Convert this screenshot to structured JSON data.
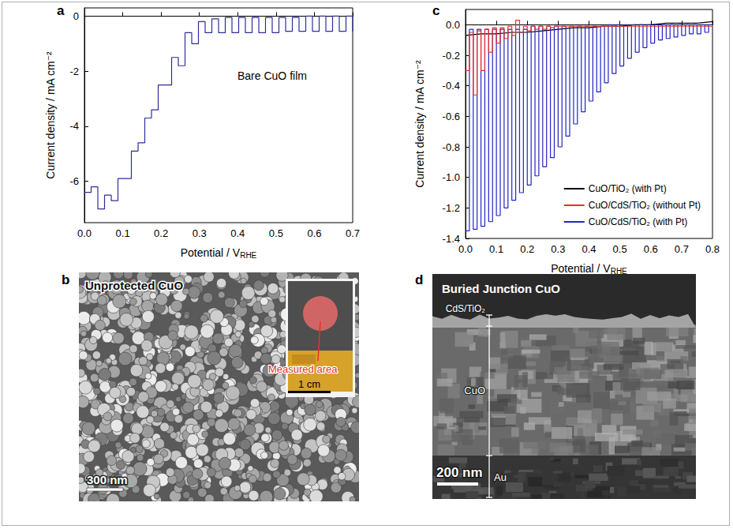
{
  "chart_data": [
    {
      "panel": "a",
      "type": "line",
      "annotations": [
        "Bare CuO film"
      ],
      "x_label": "Potential / VRHE",
      "y_label": "Current density / mA cm⁻²",
      "xlim": [
        0,
        0.7
      ],
      "xticks": [
        {
          "value": 0,
          "label": "0.0"
        },
        0.1,
        0.2,
        0.3,
        0.4,
        0.5,
        0.6,
        0.7
      ],
      "ylim": [
        -7.5,
        0.3
      ],
      "yticks": [
        -6,
        -4,
        -2,
        0
      ],
      "grid": false,
      "color": "#2e2e9a",
      "line_style": "step",
      "x": [
        0,
        0.0175,
        0.035,
        0.0525,
        0.07,
        0.0875,
        0.105,
        0.1225,
        0.14,
        0.1575,
        0.175,
        0.1925,
        0.21,
        0.2275,
        0.245,
        0.2625,
        0.28,
        0.2975,
        0.315,
        0.3325,
        0.35,
        0.3675,
        0.385,
        0.4025,
        0.42,
        0.4375,
        0.455,
        0.4725,
        0.49,
        0.5075,
        0.525,
        0.5425,
        0.56,
        0.5775,
        0.595,
        0.6125,
        0.63,
        0.6475,
        0.665,
        0.6825,
        0.7
      ],
      "values": [
        -6.4,
        -6.2,
        -7.0,
        -6.5,
        -6.7,
        -5.9,
        -5.9,
        -4.9,
        -4.6,
        -3.7,
        -3.4,
        -2.5,
        -2.5,
        -1.5,
        -1.8,
        -0.6,
        -1.0,
        -0.2,
        -0.6,
        -0.1,
        -0.6,
        -0.05,
        -0.6,
        -0.05,
        -0.6,
        -0.05,
        -0.6,
        -0.05,
        -0.6,
        -0.05,
        -0.55,
        -0.05,
        -0.55,
        0,
        -0.55,
        0,
        -0.55,
        0,
        -0.55,
        0,
        -0.55
      ]
    },
    {
      "panel": "c",
      "type": "line",
      "x_label": "Potential / VRHE",
      "y_label": "Current density / mA cm⁻²",
      "xlim": [
        0,
        0.8
      ],
      "xticks": [
        {
          "value": 0,
          "label": "0.0"
        },
        0.1,
        0.2,
        0.3,
        0.4,
        0.5,
        0.6,
        0.7,
        0.8
      ],
      "ylim": [
        -1.4,
        0.1
      ],
      "yticks": [
        -1.4,
        -1.2,
        {
          "value": -1,
          "label": "-1.0"
        },
        -0.8,
        -0.6,
        -0.4,
        -0.2,
        {
          "value": 0,
          "label": "0.0"
        }
      ],
      "grid": false,
      "legend": "lower right",
      "series": [
        {
          "name": "CuO/TiO₂ (with Pt)",
          "color": "#000000",
          "line_style": "solid",
          "x": [
            0,
            0.05,
            0.1,
            0.15,
            0.2,
            0.25,
            0.3,
            0.35,
            0.4,
            0.45,
            0.5,
            0.55,
            0.6,
            0.65,
            0.7,
            0.75,
            0.8
          ],
          "values": [
            -0.07,
            -0.06,
            -0.06,
            -0.05,
            -0.05,
            -0.04,
            -0.03,
            -0.02,
            -0.02,
            -0.01,
            -0.01,
            0,
            0,
            0.01,
            0.01,
            0.01,
            0.02
          ]
        },
        {
          "name": "CuO/CdS/TiO₂ (without Pt)",
          "color": "#e8302a",
          "line_style": "step",
          "x": [
            0,
            0.0125,
            0.025,
            0.0375,
            0.05,
            0.0625,
            0.075,
            0.0875,
            0.1,
            0.1125,
            0.125,
            0.1375,
            0.15,
            0.1625,
            0.175,
            0.1875,
            0.2,
            0.2125,
            0.225,
            0.2375,
            0.25,
            0.2625,
            0.275,
            0.2875,
            0.3,
            0.8
          ],
          "values": [
            -0.3,
            -0.05,
            -0.46,
            -0.04,
            -0.3,
            -0.03,
            -0.18,
            -0.02,
            -0.12,
            -0.02,
            -0.09,
            -0.01,
            -0.07,
            0.03,
            -0.05,
            -0.01,
            -0.04,
            -0.01,
            -0.03,
            -0.01,
            -0.03,
            -0.01,
            -0.02,
            -0.01,
            -0.01,
            -0.01
          ]
        },
        {
          "name": "CuO/CdS/TiO₂ (with Pt)",
          "color": "#2323c4",
          "line_style": "step",
          "x": [
            0,
            0.0125,
            0.025,
            0.0375,
            0.05,
            0.0625,
            0.075,
            0.0875,
            0.1,
            0.1125,
            0.125,
            0.1375,
            0.15,
            0.1625,
            0.175,
            0.1875,
            0.2,
            0.2125,
            0.225,
            0.2375,
            0.25,
            0.2625,
            0.275,
            0.2875,
            0.3,
            0.3125,
            0.325,
            0.3375,
            0.35,
            0.3625,
            0.375,
            0.3875,
            0.4,
            0.4125,
            0.425,
            0.4375,
            0.45,
            0.4625,
            0.475,
            0.4875,
            0.5,
            0.5125,
            0.525,
            0.5375,
            0.55,
            0.5625,
            0.575,
            0.5875,
            0.6,
            0.6125,
            0.625,
            0.6375,
            0.65,
            0.6625,
            0.675,
            0.6875,
            0.7,
            0.7125,
            0.725,
            0.7375,
            0.75,
            0.7625,
            0.775,
            0.7875,
            0.8
          ],
          "values": [
            -1.35,
            -0.03,
            -1.34,
            -0.03,
            -1.32,
            -0.03,
            -1.29,
            -0.03,
            -1.25,
            -0.03,
            -1.2,
            -0.03,
            -1.15,
            -0.03,
            -1.1,
            -0.03,
            -1.05,
            -0.01,
            -0.99,
            -0.01,
            -0.93,
            -0.01,
            -0.87,
            -0.01,
            -0.8,
            -0.01,
            -0.73,
            -0.01,
            -0.65,
            -0.01,
            -0.57,
            -0.01,
            -0.5,
            -0.01,
            -0.44,
            -0.01,
            -0.38,
            0,
            -0.32,
            0,
            -0.27,
            0,
            -0.22,
            0,
            -0.18,
            0,
            -0.15,
            0,
            -0.12,
            0,
            -0.1,
            0,
            -0.09,
            0,
            -0.08,
            0,
            -0.07,
            0,
            -0.06,
            0,
            -0.06,
            0,
            -0.05,
            0,
            0
          ]
        }
      ]
    }
  ],
  "images": [
    {
      "panel": "b",
      "title": "Unprotected CuO",
      "scale_bar": "300 nm",
      "inset": {
        "label": "Measured area",
        "scale_bar": "1 cm"
      }
    },
    {
      "panel": "d",
      "title": "Buried Junction CuO",
      "layers": [
        "CdS/TiO₂",
        "CuO",
        "Au"
      ],
      "scale_bar": "200 nm"
    }
  ]
}
